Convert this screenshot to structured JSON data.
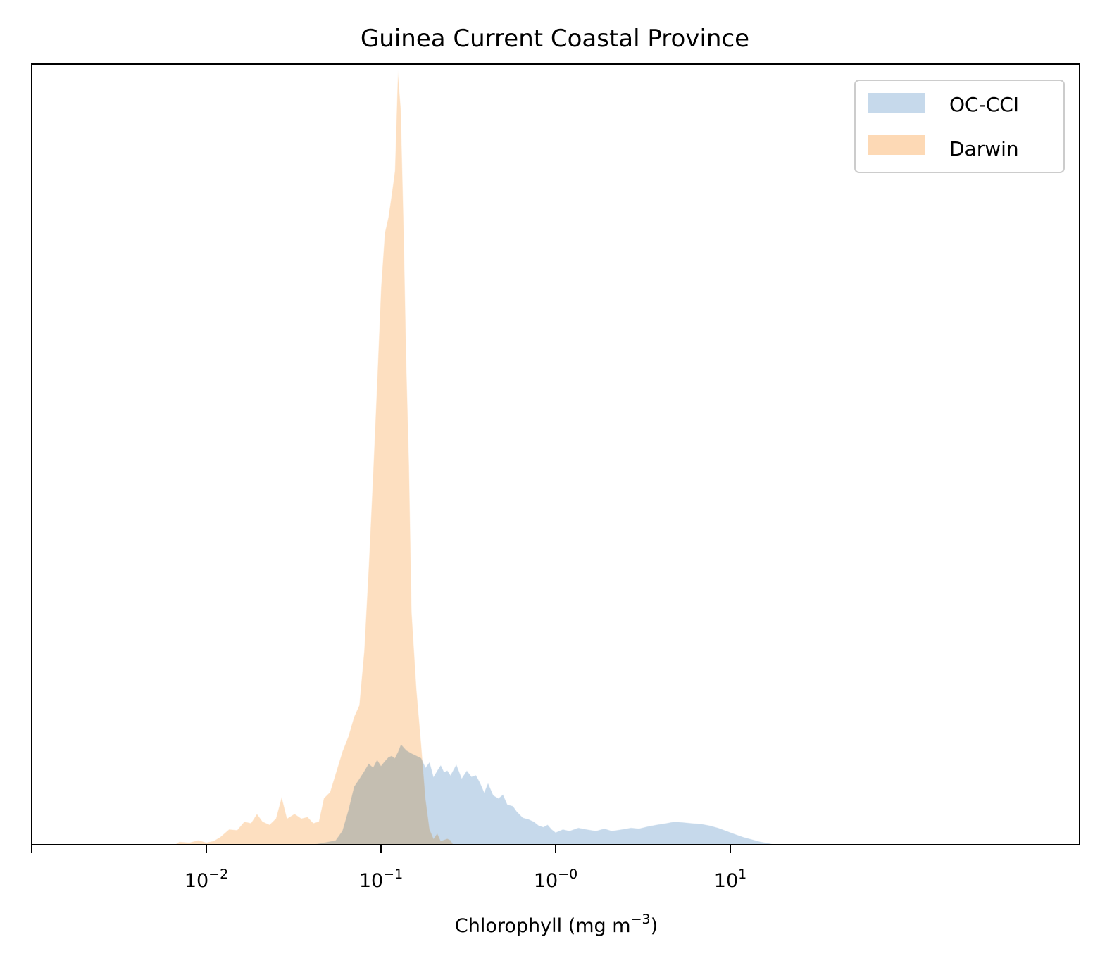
{
  "chart_data": {
    "type": "area",
    "title": "Guinea Current Coastal Province",
    "xlabel": "Chlorophyll  (mg m",
    "xlabel_superscript": "−3",
    "xlabel_suffix": ")",
    "ylabel": "",
    "xscale": "log",
    "xlim": [
      0.001,
      1000
    ],
    "x_tick_labels": [
      {
        "base": "10",
        "exp": "−2",
        "value": 0.01
      },
      {
        "base": "10",
        "exp": "−1",
        "value": 0.1
      },
      {
        "base": "10",
        "exp": "−0",
        "value": 1
      },
      {
        "base": "10",
        "exp": "1",
        "value": 10
      }
    ],
    "y_ticks_shown": false,
    "legend_position": "top-right",
    "series": [
      {
        "name": "OC-CCI",
        "color": "#c6d9eb",
        "points": [
          [
            0.04,
            0.0
          ],
          [
            0.045,
            0.002
          ],
          [
            0.05,
            0.004
          ],
          [
            0.055,
            0.006
          ],
          [
            0.06,
            0.018
          ],
          [
            0.065,
            0.045
          ],
          [
            0.07,
            0.075
          ],
          [
            0.075,
            0.085
          ],
          [
            0.08,
            0.095
          ],
          [
            0.085,
            0.105
          ],
          [
            0.09,
            0.1
          ],
          [
            0.095,
            0.11
          ],
          [
            0.1,
            0.102
          ],
          [
            0.105,
            0.108
          ],
          [
            0.11,
            0.113
          ],
          [
            0.115,
            0.115
          ],
          [
            0.12,
            0.112
          ],
          [
            0.125,
            0.12
          ],
          [
            0.13,
            0.13
          ],
          [
            0.14,
            0.122
          ],
          [
            0.15,
            0.118
          ],
          [
            0.16,
            0.115
          ],
          [
            0.17,
            0.112
          ],
          [
            0.18,
            0.1
          ],
          [
            0.19,
            0.107
          ],
          [
            0.2,
            0.088
          ],
          [
            0.21,
            0.096
          ],
          [
            0.22,
            0.103
          ],
          [
            0.23,
            0.094
          ],
          [
            0.24,
            0.096
          ],
          [
            0.25,
            0.09
          ],
          [
            0.27,
            0.104
          ],
          [
            0.29,
            0.086
          ],
          [
            0.31,
            0.096
          ],
          [
            0.33,
            0.088
          ],
          [
            0.35,
            0.09
          ],
          [
            0.37,
            0.08
          ],
          [
            0.39,
            0.068
          ],
          [
            0.41,
            0.08
          ],
          [
            0.44,
            0.064
          ],
          [
            0.47,
            0.06
          ],
          [
            0.5,
            0.065
          ],
          [
            0.53,
            0.052
          ],
          [
            0.57,
            0.05
          ],
          [
            0.6,
            0.043
          ],
          [
            0.65,
            0.035
          ],
          [
            0.7,
            0.033
          ],
          [
            0.75,
            0.03
          ],
          [
            0.8,
            0.025
          ],
          [
            0.85,
            0.023
          ],
          [
            0.9,
            0.026
          ],
          [
            0.95,
            0.02
          ],
          [
            1.0,
            0.016
          ],
          [
            1.1,
            0.02
          ],
          [
            1.2,
            0.018
          ],
          [
            1.35,
            0.022
          ],
          [
            1.5,
            0.02
          ],
          [
            1.7,
            0.018
          ],
          [
            1.9,
            0.021
          ],
          [
            2.1,
            0.018
          ],
          [
            2.4,
            0.02
          ],
          [
            2.7,
            0.022
          ],
          [
            3.0,
            0.021
          ],
          [
            3.4,
            0.024
          ],
          [
            3.8,
            0.026
          ],
          [
            4.3,
            0.028
          ],
          [
            4.8,
            0.03
          ],
          [
            5.4,
            0.029
          ],
          [
            6.0,
            0.028
          ],
          [
            6.8,
            0.027
          ],
          [
            7.6,
            0.025
          ],
          [
            8.5,
            0.022
          ],
          [
            9.5,
            0.018
          ],
          [
            10.6,
            0.014
          ],
          [
            11.9,
            0.01
          ],
          [
            13.3,
            0.007
          ],
          [
            14.9,
            0.004
          ],
          [
            16.7,
            0.002
          ],
          [
            18.0,
            0.0
          ]
        ]
      },
      {
        "name": "Darwin",
        "color": "#fdd9b5",
        "points": [
          [
            0.0066,
            0.0
          ],
          [
            0.007,
            0.004
          ],
          [
            0.008,
            0.003
          ],
          [
            0.009,
            0.006
          ],
          [
            0.01,
            0.003
          ],
          [
            0.011,
            0.005
          ],
          [
            0.012,
            0.01
          ],
          [
            0.0135,
            0.02
          ],
          [
            0.015,
            0.019
          ],
          [
            0.0165,
            0.03
          ],
          [
            0.018,
            0.028
          ],
          [
            0.0195,
            0.04
          ],
          [
            0.021,
            0.03
          ],
          [
            0.023,
            0.026
          ],
          [
            0.025,
            0.034
          ],
          [
            0.027,
            0.062
          ],
          [
            0.029,
            0.034
          ],
          [
            0.032,
            0.04
          ],
          [
            0.035,
            0.034
          ],
          [
            0.038,
            0.036
          ],
          [
            0.041,
            0.028
          ],
          [
            0.044,
            0.03
          ],
          [
            0.047,
            0.06
          ],
          [
            0.051,
            0.068
          ],
          [
            0.055,
            0.092
          ],
          [
            0.06,
            0.12
          ],
          [
            0.065,
            0.14
          ],
          [
            0.07,
            0.165
          ],
          [
            0.075,
            0.18
          ],
          [
            0.08,
            0.25
          ],
          [
            0.085,
            0.36
          ],
          [
            0.09,
            0.48
          ],
          [
            0.095,
            0.6
          ],
          [
            0.1,
            0.72
          ],
          [
            0.105,
            0.79
          ],
          [
            0.11,
            0.81
          ],
          [
            0.115,
            0.84
          ],
          [
            0.12,
            0.87
          ],
          [
            0.125,
            1.0
          ],
          [
            0.13,
            0.95
          ],
          [
            0.135,
            0.8
          ],
          [
            0.14,
            0.62
          ],
          [
            0.145,
            0.49
          ],
          [
            0.15,
            0.3
          ],
          [
            0.16,
            0.2
          ],
          [
            0.17,
            0.13
          ],
          [
            0.18,
            0.06
          ],
          [
            0.19,
            0.02
          ],
          [
            0.2,
            0.008
          ],
          [
            0.21,
            0.015
          ],
          [
            0.22,
            0.005
          ],
          [
            0.24,
            0.008
          ],
          [
            0.25,
            0.006
          ],
          [
            0.26,
            0.0
          ]
        ]
      }
    ]
  }
}
